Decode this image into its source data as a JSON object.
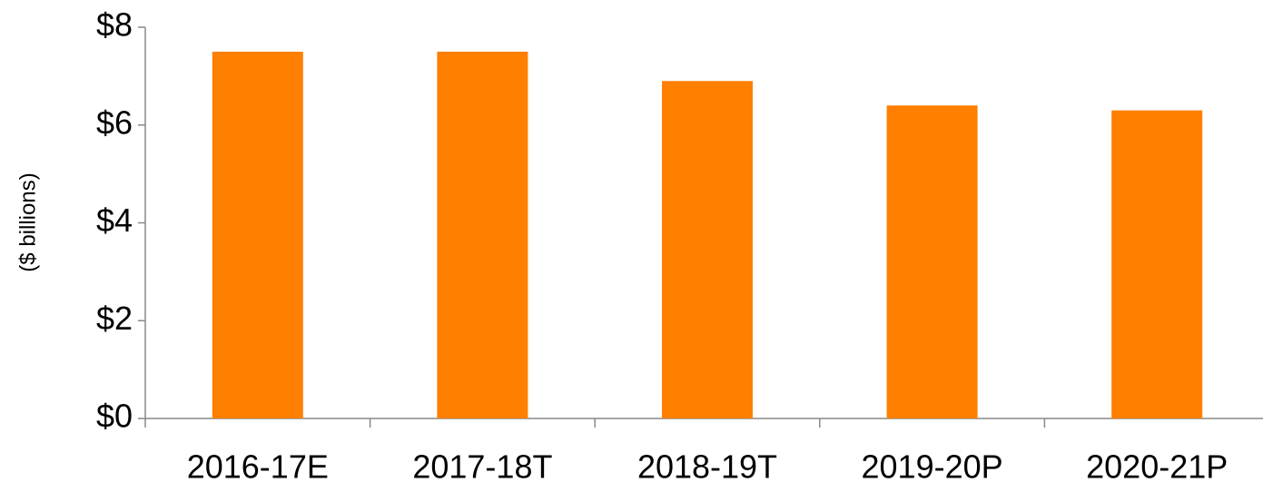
{
  "chart_data": {
    "type": "bar",
    "y_label": "($ billions)",
    "categories": [
      "2016-17E",
      "2017-18T",
      "2018-19T",
      "2019-20P",
      "2020-21P"
    ],
    "values": [
      7.5,
      7.5,
      6.9,
      6.4,
      6.3
    ],
    "color": "#ff7f00",
    "ylim": [
      0,
      8
    ],
    "yticks": [
      {
        "value": 0,
        "label": "$0"
      },
      {
        "value": 2,
        "label": "$2"
      },
      {
        "value": 4,
        "label": "$4"
      },
      {
        "value": 6,
        "label": "$6"
      },
      {
        "value": 8,
        "label": "$8"
      }
    ],
    "grid": false
  }
}
